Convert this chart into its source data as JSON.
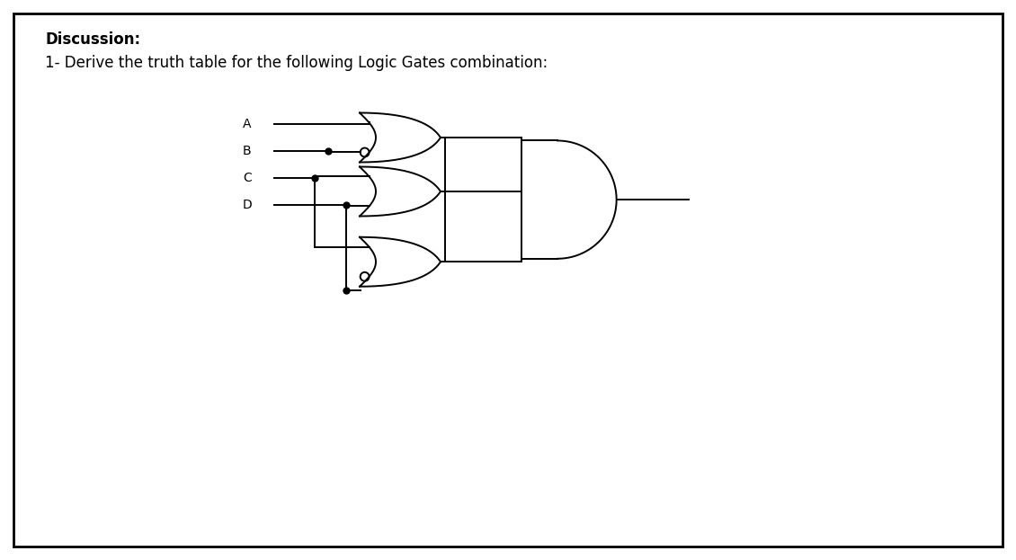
{
  "title_bold": "Discussion:",
  "title_line": "1- Derive the truth table for the following Logic Gates combination:",
  "bg_color": "#ffffff",
  "lc": "#000000",
  "labels": [
    "A",
    "B",
    "C",
    "D"
  ],
  "fig_width": 11.3,
  "fig_height": 6.23,
  "dpi": 100
}
